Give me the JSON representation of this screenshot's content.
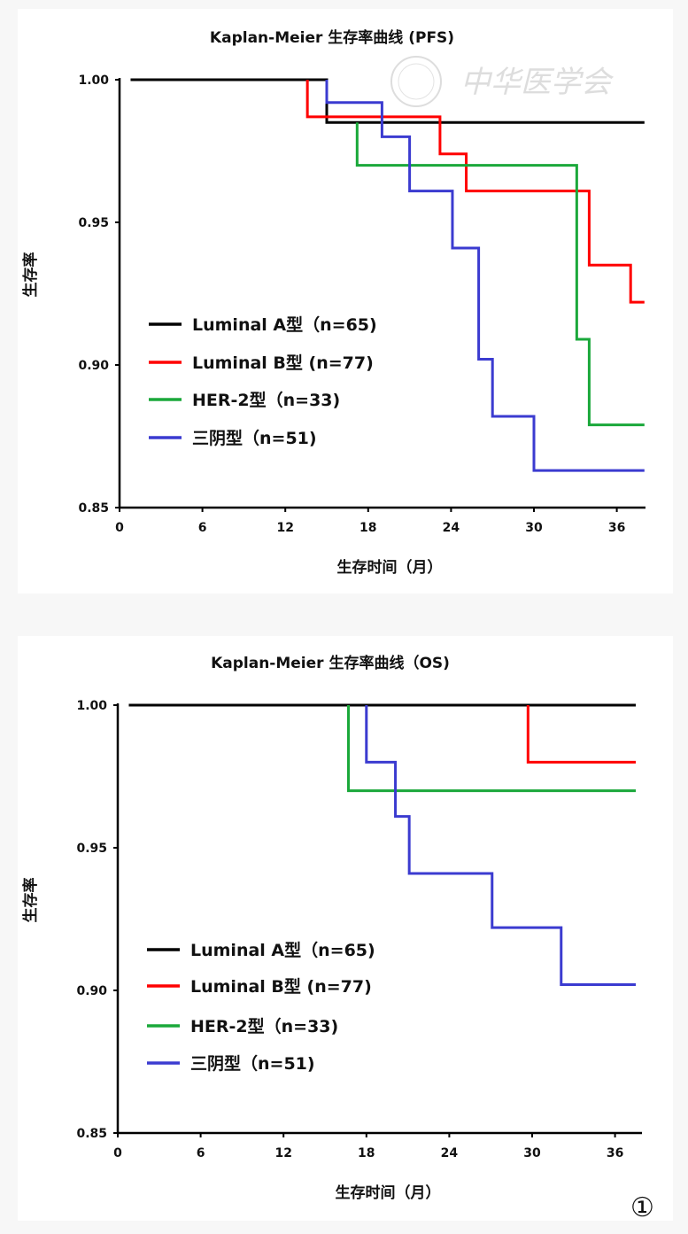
{
  "figure_label": "①",
  "watermark": "中华医学会",
  "chart_data": [
    {
      "type": "line",
      "subtype": "kaplan-meier-step",
      "title": "Kaplan-Meier 生存率曲线 (PFS)",
      "xlabel": "生存时间（月）",
      "ylabel": "生存率",
      "xlim": [
        0,
        38
      ],
      "ylim": [
        0.85,
        1.0
      ],
      "xticks": [
        "0",
        "6",
        "12",
        "18",
        "24",
        "30",
        "36"
      ],
      "yticks": [
        "1.00",
        "0.95",
        "0.90",
        "0.85"
      ],
      "legend_position": "bottom-left",
      "series": [
        {
          "name": "Luminal A型（n=65)",
          "color": "#000000",
          "start": 0.8,
          "end": 38,
          "steps": [
            [
              0.8,
              1.0
            ],
            [
              15,
              0.985
            ]
          ]
        },
        {
          "name": "Luminal B型 (n=77)",
          "color": "#ff0000",
          "start": 13.6,
          "end": 38,
          "steps": [
            [
              13.6,
              1.0
            ],
            [
              13.6,
              0.987
            ],
            [
              23.2,
              0.974
            ],
            [
              25.1,
              0.961
            ],
            [
              34,
              0.935
            ],
            [
              37,
              0.922
            ]
          ]
        },
        {
          "name": "HER-2型（n=33)",
          "color": "#1aa83a",
          "start": 17.2,
          "end": 38,
          "steps": [
            [
              17.2,
              0.985
            ],
            [
              17.2,
              0.97
            ],
            [
              33.1,
              0.909
            ],
            [
              34,
              0.879
            ]
          ]
        },
        {
          "name": "三阴型（n=51)",
          "color": "#3b3bd0",
          "start": 15,
          "end": 38,
          "steps": [
            [
              15,
              1.0
            ],
            [
              15,
              0.992
            ],
            [
              19,
              0.98
            ],
            [
              21,
              0.961
            ],
            [
              24.1,
              0.941
            ],
            [
              26,
              0.902
            ],
            [
              27,
              0.882
            ],
            [
              30,
              0.863
            ]
          ]
        }
      ]
    },
    {
      "type": "line",
      "subtype": "kaplan-meier-step",
      "title": "Kaplan-Meier 生存率曲线（OS)",
      "xlabel": "生存时间（月）",
      "ylabel": "生存率",
      "xlim": [
        0,
        38
      ],
      "ylim": [
        0.85,
        1.0
      ],
      "xticks": [
        "0",
        "6",
        "12",
        "18",
        "24",
        "30",
        "36"
      ],
      "yticks": [
        "1.00",
        "0.95",
        "0.90",
        "0.85"
      ],
      "legend_position": "bottom-left",
      "series": [
        {
          "name": "Luminal A型（n=65)",
          "color": "#000000",
          "start": 0.8,
          "end": 37.5,
          "steps": [
            [
              0.8,
              1.0
            ]
          ]
        },
        {
          "name": "Luminal B型 (n=77)",
          "color": "#ff0000",
          "start": 29.7,
          "end": 37.5,
          "steps": [
            [
              29.7,
              1.0
            ],
            [
              29.7,
              0.98
            ]
          ]
        },
        {
          "name": "HER-2型（n=33)",
          "color": "#1aa83a",
          "start": 16.7,
          "end": 37.5,
          "steps": [
            [
              16.7,
              1.0
            ],
            [
              16.7,
              0.97
            ]
          ]
        },
        {
          "name": "三阴型（n=51)",
          "color": "#3b3bd0",
          "start": 18,
          "end": 37.5,
          "steps": [
            [
              18,
              1.0
            ],
            [
              18,
              0.98
            ],
            [
              20.1,
              0.961
            ],
            [
              21.1,
              0.941
            ],
            [
              27.1,
              0.922
            ],
            [
              32.1,
              0.902
            ]
          ]
        }
      ]
    }
  ]
}
